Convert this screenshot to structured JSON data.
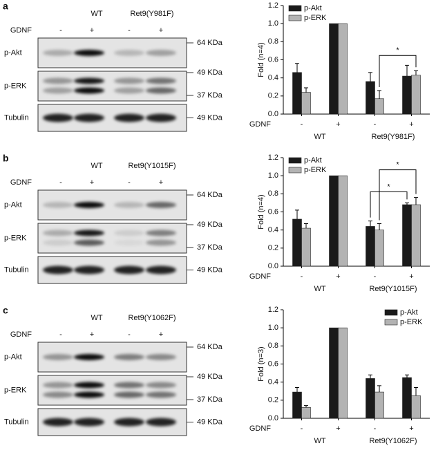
{
  "panels": [
    {
      "label": "a",
      "groups": [
        "WT",
        "Ret9(Y981F)"
      ],
      "gdnf_label": "GDNF",
      "gdnf": [
        "-",
        "+",
        "-",
        "+"
      ],
      "rows": [
        {
          "name": "p-Akt",
          "markers": [
            "64 KDa"
          ]
        },
        {
          "name": "p-ERK",
          "markers": [
            "49 KDa",
            "37 KDa"
          ]
        },
        {
          "name": "Tubulin",
          "markers": [
            "49 KDa"
          ]
        }
      ]
    },
    {
      "label": "b",
      "groups": [
        "WT",
        "Ret9(Y1015F)"
      ],
      "gdnf_label": "GDNF",
      "gdnf": [
        "-",
        "+",
        "-",
        "+"
      ],
      "rows": [
        {
          "name": "p-Akt",
          "markers": [
            "64 KDa"
          ]
        },
        {
          "name": "p-ERK",
          "markers": [
            "49 KDa",
            "37 KDa"
          ]
        },
        {
          "name": "Tubulin",
          "markers": [
            "49 KDa"
          ]
        }
      ]
    },
    {
      "label": "c",
      "groups": [
        "WT",
        "Ret9(Y1062F)"
      ],
      "gdnf_label": "GDNF",
      "gdnf": [
        "-",
        "+",
        "-",
        "+"
      ],
      "rows": [
        {
          "name": "p-Akt",
          "markers": [
            "64 KDa"
          ]
        },
        {
          "name": "p-ERK",
          "markers": [
            "49 KDa",
            "37 KDa"
          ]
        },
        {
          "name": "Tubulin",
          "markers": [
            "49 KDa"
          ]
        }
      ]
    }
  ],
  "chart_data": [
    {
      "type": "bar",
      "ylabel": "Fold (n=4)",
      "xlabel": "GDNF",
      "categories": [
        "-",
        "+",
        "-",
        "+"
      ],
      "groups": [
        "WT",
        "Ret9(Y981F)"
      ],
      "series": [
        {
          "name": "p-Akt",
          "color": "#1a1a1a",
          "values": [
            0.46,
            1.0,
            0.36,
            0.42
          ],
          "errors": [
            0.1,
            0,
            0.1,
            0.12
          ]
        },
        {
          "name": "p-ERK",
          "color": "#b3b3b3",
          "values": [
            0.24,
            1.0,
            0.17,
            0.43
          ],
          "errors": [
            0.05,
            0,
            0.09,
            0.05
          ]
        }
      ],
      "ylim": [
        0,
        1.2
      ],
      "yticks": [
        {
          "value": 0,
          "label": "0.0"
        },
        0.2,
        0.4,
        0.6,
        0.8,
        {
          "value": 1,
          "label": "1.0"
        },
        1.2
      ],
      "legend": "upper left",
      "annotations": [
        "*"
      ]
    },
    {
      "type": "bar",
      "ylabel": "Fold (n=4)",
      "xlabel": "GDNF",
      "categories": [
        "-",
        "+",
        "-",
        "+"
      ],
      "groups": [
        "WT",
        "Ret9(Y1015F)"
      ],
      "series": [
        {
          "name": "p-Akt",
          "color": "#1a1a1a",
          "values": [
            0.52,
            1.0,
            0.44,
            0.68
          ],
          "errors": [
            0.1,
            0,
            0.06,
            0.02
          ]
        },
        {
          "name": "p-ERK",
          "color": "#b3b3b3",
          "values": [
            0.42,
            1.0,
            0.4,
            0.68
          ],
          "errors": [
            0.05,
            0,
            0.07,
            0.08
          ]
        }
      ],
      "ylim": [
        0,
        1.2
      ],
      "yticks": [
        {
          "value": 0,
          "label": "0.0"
        },
        0.2,
        0.4,
        0.6,
        0.8,
        {
          "value": 1,
          "label": "1.0"
        },
        1.2
      ],
      "legend": "upper left",
      "annotations": [
        "*",
        "*"
      ]
    },
    {
      "type": "bar",
      "ylabel": "Fold (n=3)",
      "xlabel": "GDNF",
      "categories": [
        "-",
        "+",
        "-",
        "+"
      ],
      "groups": [
        "WT",
        "Ret9(Y1062F)"
      ],
      "series": [
        {
          "name": "p-Akt",
          "color": "#1a1a1a",
          "values": [
            0.29,
            1.0,
            0.44,
            0.45
          ],
          "errors": [
            0.05,
            0,
            0.04,
            0.03
          ]
        },
        {
          "name": "p-ERK",
          "color": "#b3b3b3",
          "values": [
            0.12,
            1.0,
            0.29,
            0.25
          ],
          "errors": [
            0.02,
            0,
            0.07,
            0.09
          ]
        }
      ],
      "ylim": [
        0,
        1.2
      ],
      "yticks": [
        {
          "value": 0,
          "label": "0.0"
        },
        0.2,
        0.4,
        0.6,
        0.8,
        {
          "value": 1,
          "label": "1.0"
        },
        1.2
      ],
      "legend": "upper right",
      "annotations": []
    }
  ]
}
